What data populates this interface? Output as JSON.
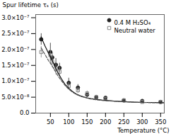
{
  "chart_data": {
    "type": "scatter",
    "xlabel": "Temperature (°C)",
    "ylabel": "Spur lifetime τₛ (s)",
    "xlim": [
      10,
      360
    ],
    "ylim": [
      0,
      3.1e-07
    ],
    "xticks": [
      50,
      100,
      150,
      200,
      250,
      300,
      350
    ],
    "yticks": [
      {
        "value": 0,
        "label": "0.0"
      },
      {
        "value": 5e-08,
        "label": "5.0×10⁻⁸"
      },
      {
        "value": 1e-07,
        "label": "1.0×10⁻⁷"
      },
      {
        "value": 1.5e-07,
        "label": "1.5×10⁻⁷"
      },
      {
        "value": 2e-07,
        "label": "2.0×10⁻⁷"
      },
      {
        "value": 2.5e-07,
        "label": "2.5×10⁻⁷"
      },
      {
        "value": 3e-07,
        "label": "3.0×10⁻⁷"
      }
    ],
    "grid": false,
    "legend": "upper right",
    "series": [
      {
        "name": "0.4 M H₂SO₄",
        "type": "scatter",
        "color": "#222222",
        "marker": "circle",
        "x": [
          25,
          50,
          55,
          65,
          75,
          100,
          125,
          150,
          175,
          200,
          250,
          300,
          350
        ],
        "values": [
          2.32e-07,
          1.92e-07,
          1.75e-07,
          1.52e-07,
          1.42e-07,
          9.5e-08,
          8e-08,
          5.8e-08,
          5e-08,
          4.8e-08,
          4e-08,
          3.8e-08,
          3.5e-08
        ],
        "yerr": [
          1.8e-08,
          2.8e-08,
          1.5e-08,
          2e-08,
          1.5e-08,
          1.5e-08,
          1e-08,
          8e-09,
          6e-09,
          5e-09,
          4e-09,
          4e-09,
          4e-09
        ]
      },
      {
        "name": "Neutral water",
        "type": "scatter",
        "color": "#888888",
        "marker": "open-square",
        "x": [
          25,
          50,
          55,
          65,
          75,
          100,
          125,
          150,
          175,
          200,
          250,
          300,
          350
        ],
        "values": [
          1.92e-07,
          1.82e-07,
          1.62e-07,
          1.4e-07,
          1.3e-07,
          8.5e-08,
          7.2e-08,
          6.2e-08,
          5e-08,
          4.5e-08,
          4e-08,
          3.5e-08,
          3.5e-08
        ],
        "yerr": [
          1.8e-08,
          2e-08,
          1.8e-08,
          2e-08,
          1.5e-08,
          1.2e-08,
          1e-08,
          8e-09,
          6e-09,
          5e-09,
          4e-09,
          4e-09,
          4e-09
        ]
      },
      {
        "type": "line",
        "color": "#111111",
        "line_style": "solid",
        "x": [
          25,
          30,
          35,
          40,
          45,
          50,
          55,
          60,
          65,
          70,
          75,
          80,
          90,
          100,
          110,
          120,
          130,
          140,
          150,
          160,
          175,
          190,
          200,
          220,
          250,
          280,
          310,
          340,
          360
        ],
        "values": [
          2.4e-07,
          2.25e-07,
          2.12e-07,
          2e-07,
          1.88e-07,
          1.77e-07,
          1.65e-07,
          1.52e-07,
          1.4e-07,
          1.28e-07,
          1.18e-07,
          1.08e-07,
          9e-08,
          7.8e-08,
          6.8e-08,
          6e-08,
          5.5e-08,
          5.1e-08,
          4.8e-08,
          4.55e-08,
          4.3e-08,
          4.1e-08,
          4e-08,
          3.8e-08,
          3.6e-08,
          3.45e-08,
          3.35e-08,
          3.3e-08,
          3.25e-08
        ]
      },
      {
        "type": "line",
        "color": "#555555",
        "line_style": "dashed",
        "x": [
          25,
          30,
          35,
          40,
          45,
          50,
          55,
          60,
          65,
          70,
          75,
          80,
          90,
          100,
          110,
          120,
          130,
          140,
          150,
          160,
          175,
          190,
          200,
          220,
          250,
          280,
          310,
          340,
          360
        ],
        "values": [
          2.05e-07,
          1.95e-07,
          1.85e-07,
          1.75e-07,
          1.65e-07,
          1.57e-07,
          1.48e-07,
          1.38e-07,
          1.28e-07,
          1.18e-07,
          1.1e-07,
          1.02e-07,
          8.7e-08,
          7.5e-08,
          6.6e-08,
          5.9e-08,
          5.4e-08,
          5e-08,
          4.7e-08,
          4.45e-08,
          4.2e-08,
          4e-08,
          3.9e-08,
          3.75e-08,
          3.55e-08,
          3.4e-08,
          3.3e-08,
          3.25e-08,
          3.2e-08
        ]
      }
    ]
  }
}
